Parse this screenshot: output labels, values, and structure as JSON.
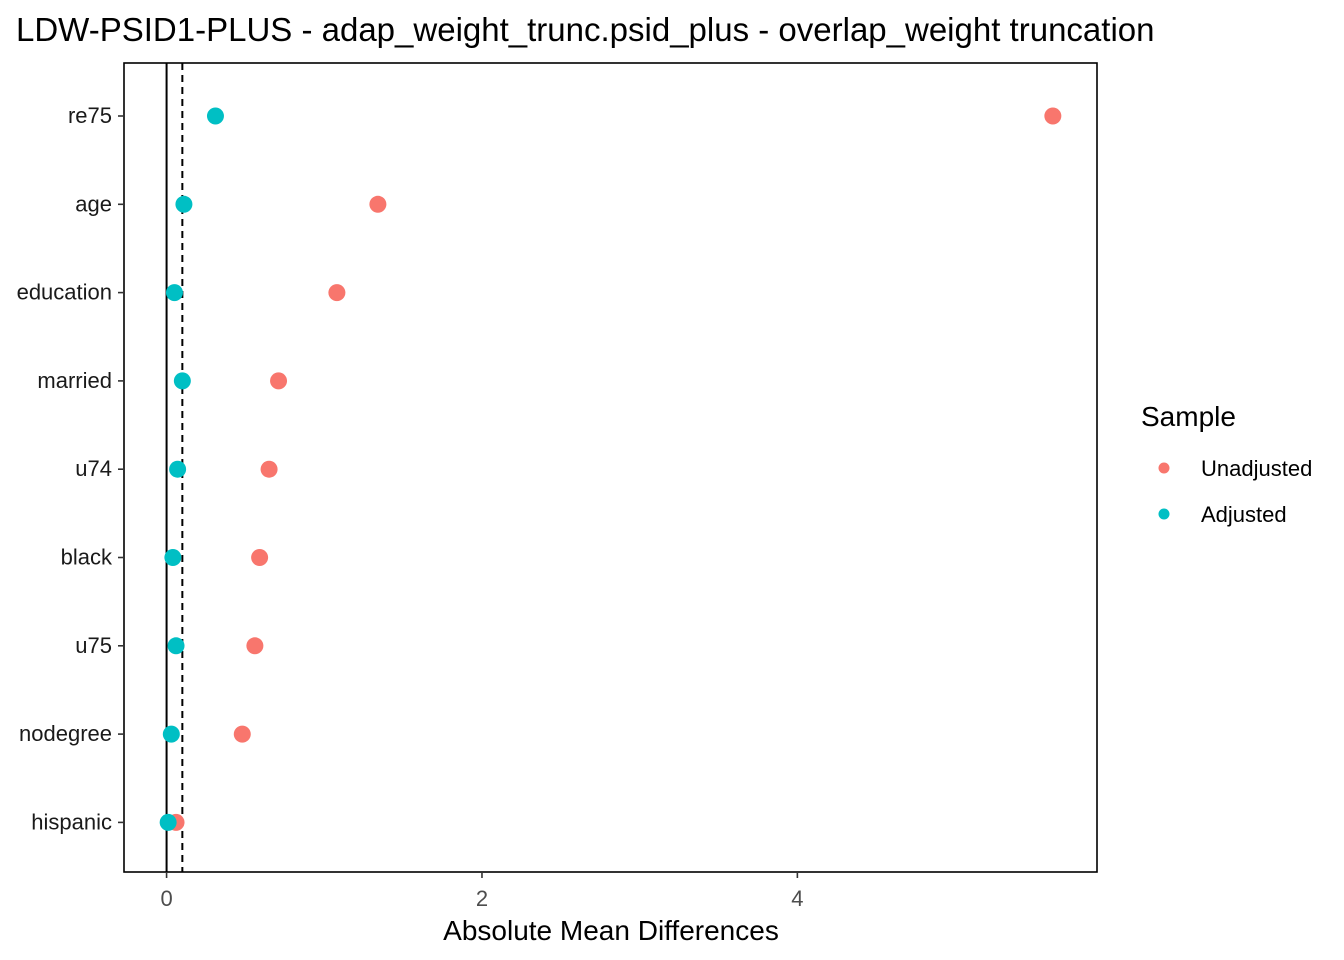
{
  "chart_data": {
    "type": "scatter",
    "title": "LDW-PSID1-PLUS - adap_weight_trunc.psid_plus - overlap_weight truncation",
    "xlabel": "Absolute Mean Differences",
    "ylabel": "",
    "categories": [
      "re75",
      "age",
      "education",
      "married",
      "u74",
      "black",
      "u75",
      "nodegree",
      "hispanic"
    ],
    "xlim": [
      -0.27,
      5.9
    ],
    "xticks": [
      0,
      2,
      4
    ],
    "threshold": 0.1,
    "legend": {
      "title": "Sample",
      "position": "right"
    },
    "series": [
      {
        "name": "Unadjusted",
        "color": "#F8766D",
        "values": [
          5.62,
          1.34,
          1.08,
          0.71,
          0.65,
          0.59,
          0.56,
          0.48,
          0.06
        ]
      },
      {
        "name": "Adjusted",
        "color": "#00BFC4",
        "values": [
          0.31,
          0.11,
          0.05,
          0.1,
          0.07,
          0.04,
          0.06,
          0.03,
          0.01
        ]
      }
    ]
  }
}
